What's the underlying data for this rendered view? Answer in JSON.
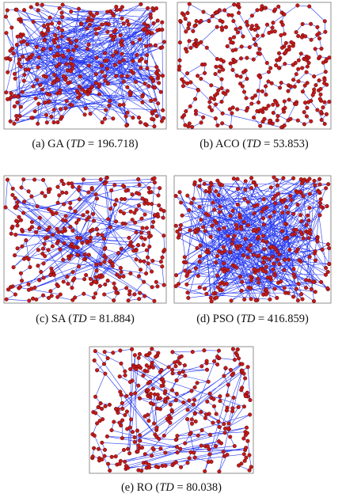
{
  "symbols": {
    "open": "(",
    "equals": "=",
    "close": ")"
  },
  "panels": [
    {
      "label": "(a)",
      "method": "GA",
      "metric": "TD",
      "value": "196.718"
    },
    {
      "label": "(b)",
      "method": "ACO",
      "metric": "TD",
      "value": "53.853"
    },
    {
      "label": "(c)",
      "method": "SA",
      "metric": "TD",
      "value": "81.884"
    },
    {
      "label": "(d)",
      "method": "PSO",
      "metric": "TD",
      "value": "416.859"
    },
    {
      "label": "(e)",
      "method": "RO",
      "metric": "TD",
      "value": "80.038"
    }
  ]
}
